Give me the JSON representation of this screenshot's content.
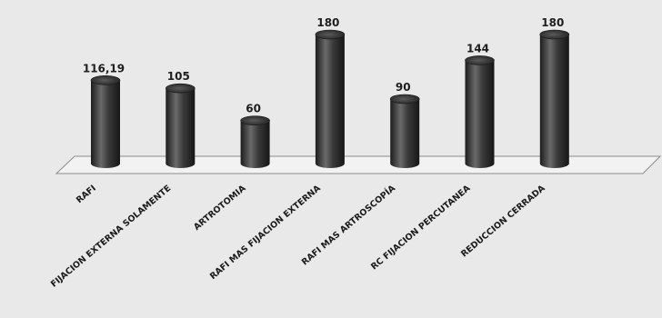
{
  "chart_data": {
    "type": "bar",
    "style": "3d-cylinder",
    "categories": [
      "RAFI",
      "FIJACION EXTERNA SOLAMENTE",
      "ARTROTOMIA",
      "RAFI MAS FIJACION EXTERNA",
      "RAFI MAS ARTROSCOPÍA",
      "RC FIJACION PERCUTANEA",
      "REDUCCION CERRADA"
    ],
    "values": [
      116.19,
      105,
      60,
      180,
      90,
      144,
      180
    ],
    "value_labels": [
      "116,19",
      "105",
      "60",
      "180",
      "90",
      "144",
      "180"
    ],
    "ylim": [
      0,
      180
    ],
    "grid": false,
    "legend": "none",
    "colors": {
      "background": "#e9e9e9",
      "bar_dark": "#2b2b2b",
      "bar_light": "#6a6a6a",
      "floor": "#f2f2f2",
      "floor_edge": "#8c8c8c"
    }
  }
}
